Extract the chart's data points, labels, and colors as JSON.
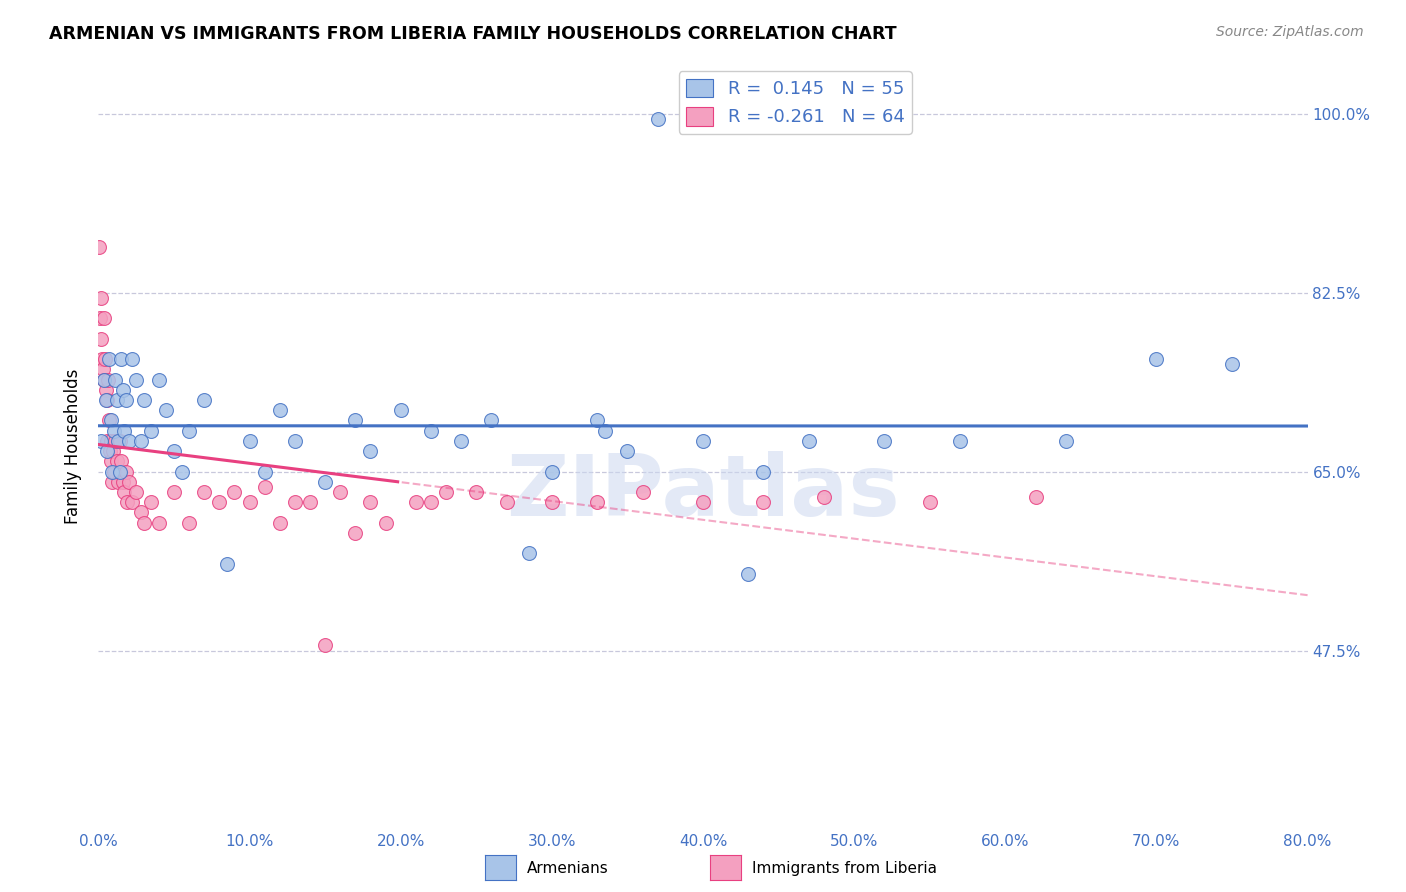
{
  "title": "ARMENIAN VS IMMIGRANTS FROM LIBERIA FAMILY HOUSEHOLDS CORRELATION CHART",
  "source": "Source: ZipAtlas.com",
  "ylabel": "Family Households",
  "x_min": 0.0,
  "x_max": 80.0,
  "y_min": 30.0,
  "y_max": 105.0,
  "y_ticks": [
    47.5,
    65.0,
    82.5,
    100.0
  ],
  "x_ticks": [
    0.0,
    10.0,
    20.0,
    30.0,
    40.0,
    50.0,
    60.0,
    70.0,
    80.0
  ],
  "r_armenian": 0.145,
  "n_armenian": 55,
  "r_liberia": -0.261,
  "n_liberia": 64,
  "color_armenian": "#a8c4e8",
  "color_liberia": "#f4a0c0",
  "color_trend_armenian": "#4472c4",
  "color_trend_liberia": "#e84080",
  "color_axis_right": "#4472c4",
  "background_color": "#ffffff",
  "grid_color": "#c8c8dc",
  "armenian_x": [
    0.2,
    0.4,
    0.5,
    0.6,
    0.7,
    0.8,
    0.9,
    1.0,
    1.1,
    1.2,
    1.3,
    1.4,
    1.5,
    1.6,
    1.7,
    1.8,
    2.0,
    2.2,
    2.5,
    2.8,
    3.0,
    3.5,
    4.0,
    4.5,
    5.0,
    5.5,
    6.0,
    7.0,
    8.5,
    10.0,
    11.0,
    12.0,
    13.0,
    15.0,
    17.0,
    18.0,
    20.0,
    22.0,
    24.0,
    26.0,
    28.5,
    30.0,
    33.0,
    35.0,
    37.0,
    40.0,
    43.0,
    33.5,
    44.0,
    47.0,
    52.0,
    57.0,
    64.0,
    70.0,
    75.0
  ],
  "armenian_y": [
    68.0,
    74.0,
    72.0,
    67.0,
    76.0,
    70.0,
    65.0,
    69.0,
    74.0,
    72.0,
    68.0,
    65.0,
    76.0,
    73.0,
    69.0,
    72.0,
    68.0,
    76.0,
    74.0,
    68.0,
    72.0,
    69.0,
    74.0,
    71.0,
    67.0,
    65.0,
    69.0,
    72.0,
    56.0,
    68.0,
    65.0,
    71.0,
    68.0,
    64.0,
    70.0,
    67.0,
    71.0,
    69.0,
    68.0,
    70.0,
    57.0,
    65.0,
    70.0,
    67.0,
    99.5,
    68.0,
    55.0,
    69.0,
    65.0,
    68.0,
    68.0,
    68.0,
    68.0,
    76.0,
    75.5
  ],
  "liberia_x": [
    0.05,
    0.1,
    0.15,
    0.2,
    0.25,
    0.3,
    0.35,
    0.4,
    0.45,
    0.5,
    0.55,
    0.6,
    0.65,
    0.7,
    0.75,
    0.8,
    0.85,
    0.9,
    0.95,
    1.0,
    1.1,
    1.2,
    1.3,
    1.4,
    1.5,
    1.6,
    1.7,
    1.8,
    1.9,
    2.0,
    2.2,
    2.5,
    2.8,
    3.0,
    3.5,
    4.0,
    5.0,
    6.0,
    7.0,
    8.0,
    9.0,
    10.0,
    11.0,
    12.0,
    13.0,
    14.0,
    15.0,
    16.0,
    17.0,
    18.0,
    19.0,
    21.0,
    22.0,
    23.0,
    25.0,
    27.0,
    30.0,
    33.0,
    36.0,
    40.0,
    44.0,
    48.0,
    55.0,
    62.0
  ],
  "liberia_y": [
    87.0,
    80.0,
    78.0,
    82.0,
    76.0,
    75.0,
    80.0,
    74.0,
    76.0,
    73.0,
    72.0,
    68.0,
    74.0,
    70.0,
    67.0,
    66.0,
    68.0,
    64.0,
    67.0,
    65.0,
    68.0,
    66.0,
    64.0,
    68.0,
    66.0,
    64.0,
    63.0,
    65.0,
    62.0,
    64.0,
    62.0,
    63.0,
    61.0,
    60.0,
    62.0,
    60.0,
    63.0,
    60.0,
    63.0,
    62.0,
    63.0,
    62.0,
    63.5,
    60.0,
    62.0,
    62.0,
    48.0,
    63.0,
    59.0,
    62.0,
    60.0,
    62.0,
    62.0,
    63.0,
    63.0,
    62.0,
    62.0,
    62.0,
    63.0,
    62.0,
    62.0,
    62.5,
    62.0,
    62.5
  ],
  "trend_liberia_solid_end": 20.0,
  "watermark": "ZIPatlas"
}
